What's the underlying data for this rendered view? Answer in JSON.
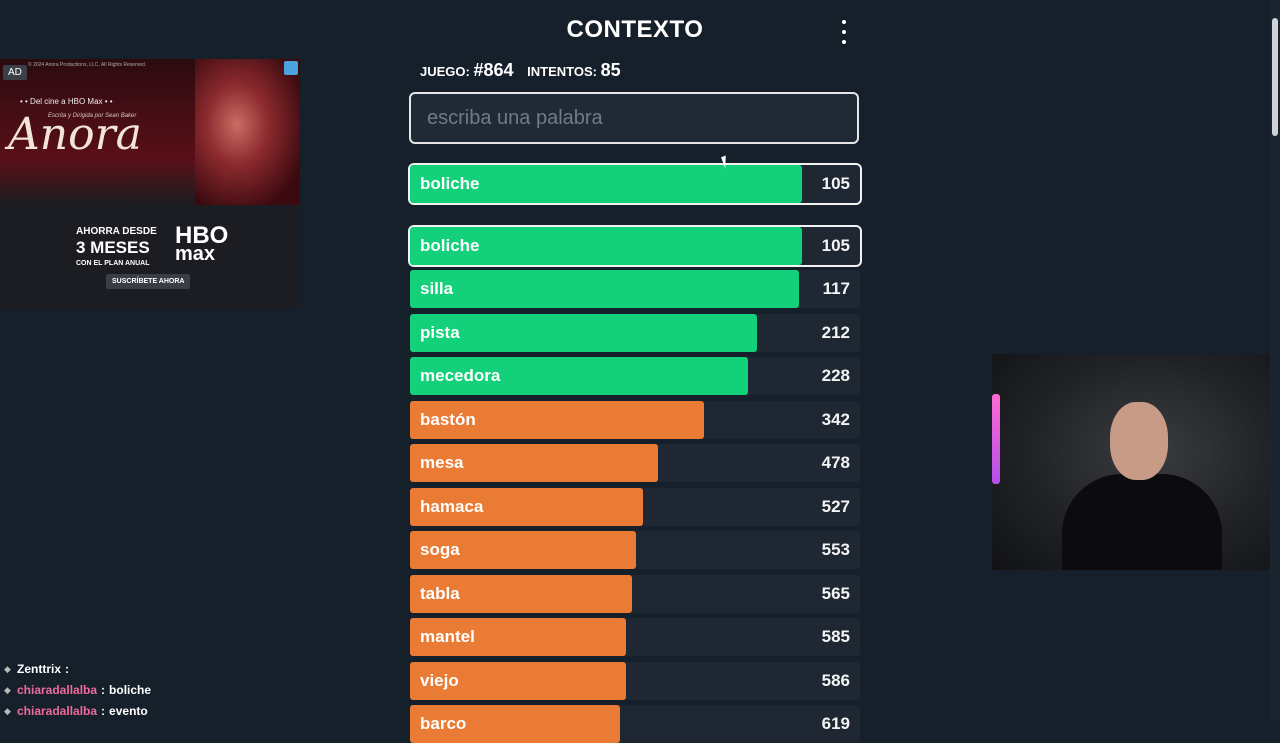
{
  "header": {
    "title": "CONTEXTO",
    "menu_icon": "kebab-menu-icon"
  },
  "stats": {
    "game_label": "JUEGO:",
    "game_value": "#864",
    "attempts_label": "INTENTOS:",
    "attempts_value": "85"
  },
  "search": {
    "value": "",
    "placeholder": "escriba una palabra"
  },
  "last_guess": {
    "word": "boliche",
    "rank": "105",
    "color": "green",
    "fill": 0.87
  },
  "guesses": [
    {
      "word": "boliche",
      "rank": "105",
      "color": "green",
      "fill": 0.87
    },
    {
      "word": "silla",
      "rank": "117",
      "color": "green",
      "fill": 0.865
    },
    {
      "word": "pista",
      "rank": "212",
      "color": "green",
      "fill": 0.77
    },
    {
      "word": "mecedora",
      "rank": "228",
      "color": "green",
      "fill": 0.752
    },
    {
      "word": "bastón",
      "rank": "342",
      "color": "orange",
      "fill": 0.653
    },
    {
      "word": "mesa",
      "rank": "478",
      "color": "orange",
      "fill": 0.551
    },
    {
      "word": "hamaca",
      "rank": "527",
      "color": "orange",
      "fill": 0.518
    },
    {
      "word": "soga",
      "rank": "553",
      "color": "orange",
      "fill": 0.502
    },
    {
      "word": "tabla",
      "rank": "565",
      "color": "orange",
      "fill": 0.494
    },
    {
      "word": "mantel",
      "rank": "585",
      "color": "orange",
      "fill": 0.48
    },
    {
      "word": "viejo",
      "rank": "586",
      "color": "orange",
      "fill": 0.48
    },
    {
      "word": "barco",
      "rank": "619",
      "color": "orange",
      "fill": 0.467
    }
  ],
  "colors": {
    "green": "#12d17a",
    "orange": "#e97b35",
    "background": "#15202b"
  },
  "ad": {
    "badge": "AD",
    "copyright": "© 2024 Anora Productions, LLC. All Rights Reserved.",
    "promo": "• • Del cine a HBO Max • •",
    "logo": "Anora",
    "tagline": "Escrita y Dirigida por Sean Baker",
    "offer_line1": "AHORRA DESDE",
    "offer_line2": "3 MESES",
    "offer_line3": "CON EL PLAN ANUAL",
    "brand": "HBO",
    "brand_sub": "max",
    "cta": "SUSCRÍBETE AHORA"
  },
  "chat": [
    {
      "user": "Zenttrix",
      "message": "",
      "user_color": "#ffffff"
    },
    {
      "user": "chiaradallalba",
      "message": "boliche",
      "user_color": "#f06b9c"
    },
    {
      "user": "chiaradallalba",
      "message": "evento",
      "user_color": "#f06b9c"
    }
  ]
}
